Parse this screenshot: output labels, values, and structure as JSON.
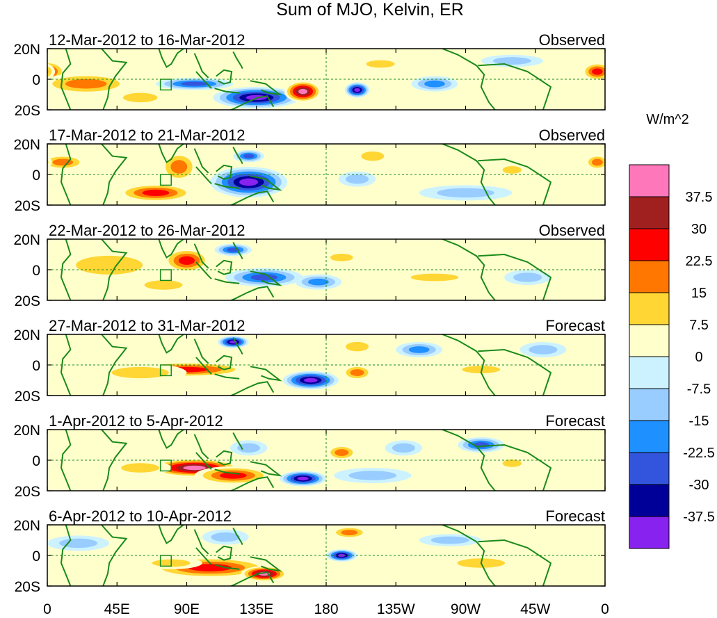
{
  "chart_data": {
    "type": "heatmap",
    "title": "Sum of MJO, Kelvin, ER",
    "panels": [
      {
        "date_range": "12-Mar-2012 to 16-Mar-2012",
        "label": "Observed",
        "anomalies": [
          {
            "lon": 0,
            "lat": 5,
            "rx": 12,
            "ry": 7,
            "v": 25
          },
          {
            "lon": 25,
            "lat": -3,
            "rx": 30,
            "ry": 7,
            "v": 20
          },
          {
            "lon": 60,
            "lat": -12,
            "rx": 18,
            "ry": 5,
            "v": 15
          },
          {
            "lon": 95,
            "lat": -3,
            "rx": 25,
            "ry": 4,
            "v": -25
          },
          {
            "lon": 135,
            "lat": -12,
            "rx": 28,
            "ry": 7,
            "v": -40
          },
          {
            "lon": 165,
            "lat": -8,
            "rx": 12,
            "ry": 7,
            "v": 40
          },
          {
            "lon": -160,
            "lat": -7,
            "rx": 8,
            "ry": 5,
            "v": -38
          },
          {
            "lon": -110,
            "lat": -3,
            "rx": 15,
            "ry": 5,
            "v": -20
          },
          {
            "lon": -145,
            "lat": 10,
            "rx": 15,
            "ry": 4,
            "v": 10
          },
          {
            "lon": 355,
            "lat": 5,
            "rx": 10,
            "ry": 6,
            "v": 25
          },
          {
            "lon": -60,
            "lat": 12,
            "rx": 20,
            "ry": 4,
            "v": -12
          }
        ]
      },
      {
        "date_range": "17-Mar-2012 to 21-Mar-2012",
        "label": "Observed",
        "anomalies": [
          {
            "lon": 10,
            "lat": 8,
            "rx": 15,
            "ry": 5,
            "v": 20
          },
          {
            "lon": 70,
            "lat": -12,
            "rx": 25,
            "ry": 6,
            "v": 30
          },
          {
            "lon": 85,
            "lat": 5,
            "rx": 12,
            "ry": 10,
            "v": 22
          },
          {
            "lon": 130,
            "lat": -5,
            "rx": 25,
            "ry": 10,
            "v": -38
          },
          {
            "lon": 130,
            "lat": 12,
            "rx": 10,
            "ry": 4,
            "v": -30
          },
          {
            "lon": -150,
            "lat": 12,
            "rx": 12,
            "ry": 5,
            "v": 15
          },
          {
            "lon": -160,
            "lat": -3,
            "rx": 12,
            "ry": 5,
            "v": -15
          },
          {
            "lon": -60,
            "lat": 3,
            "rx": 10,
            "ry": 4,
            "v": 15
          },
          {
            "lon": -90,
            "lat": -12,
            "rx": 30,
            "ry": 5,
            "v": -12
          },
          {
            "lon": 355,
            "lat": 8,
            "rx": 8,
            "ry": 5,
            "v": 22
          }
        ]
      },
      {
        "date_range": "22-Mar-2012 to 26-Mar-2012",
        "label": "Observed",
        "anomalies": [
          {
            "lon": 40,
            "lat": 3,
            "rx": 35,
            "ry": 10,
            "v": 12
          },
          {
            "lon": 90,
            "lat": 6,
            "rx": 15,
            "ry": 8,
            "v": 30
          },
          {
            "lon": 140,
            "lat": -5,
            "rx": 25,
            "ry": 6,
            "v": -30
          },
          {
            "lon": 120,
            "lat": 13,
            "rx": 12,
            "ry": 4,
            "v": -30
          },
          {
            "lon": 175,
            "lat": -8,
            "rx": 15,
            "ry": 5,
            "v": -20
          },
          {
            "lon": -170,
            "lat": 8,
            "rx": 12,
            "ry": 4,
            "v": 15
          },
          {
            "lon": -110,
            "lat": -5,
            "rx": 25,
            "ry": 4,
            "v": 10
          },
          {
            "lon": -50,
            "lat": -5,
            "rx": 15,
            "ry": 5,
            "v": -15
          },
          {
            "lon": 75,
            "lat": -10,
            "rx": 20,
            "ry": 5,
            "v": 15
          }
        ]
      },
      {
        "date_range": "27-Mar-2012 to 31-Mar-2012",
        "label": "Forecast",
        "anomalies": [
          {
            "lon": 90,
            "lat": -3,
            "rx": 40,
            "ry": 5,
            "v": 30
          },
          {
            "lon": 60,
            "lat": -5,
            "rx": 30,
            "ry": 6,
            "v": 15
          },
          {
            "lon": 120,
            "lat": 15,
            "rx": 10,
            "ry": 4,
            "v": -38
          },
          {
            "lon": 170,
            "lat": -10,
            "rx": 18,
            "ry": 6,
            "v": -40
          },
          {
            "lon": -160,
            "lat": 12,
            "rx": 12,
            "ry": 5,
            "v": 12
          },
          {
            "lon": -120,
            "lat": 10,
            "rx": 15,
            "ry": 5,
            "v": -20
          },
          {
            "lon": -160,
            "lat": -5,
            "rx": 10,
            "ry": 5,
            "v": 20
          },
          {
            "lon": -80,
            "lat": -3,
            "rx": 20,
            "ry": 4,
            "v": 10
          },
          {
            "lon": -40,
            "lat": 10,
            "rx": 15,
            "ry": 5,
            "v": -12
          }
        ]
      },
      {
        "date_range": "1-Apr-2012 to 5-Apr-2012",
        "label": "Forecast",
        "anomalies": [
          {
            "lon": 95,
            "lat": -5,
            "rx": 30,
            "ry": 6,
            "v": 40
          },
          {
            "lon": 120,
            "lat": -10,
            "rx": 25,
            "ry": 6,
            "v": 30
          },
          {
            "lon": 60,
            "lat": -5,
            "rx": 20,
            "ry": 5,
            "v": 15
          },
          {
            "lon": 165,
            "lat": -12,
            "rx": 15,
            "ry": 5,
            "v": -40
          },
          {
            "lon": 130,
            "lat": 8,
            "rx": 12,
            "ry": 5,
            "v": -15
          },
          {
            "lon": -170,
            "lat": 5,
            "rx": 10,
            "ry": 5,
            "v": 22
          },
          {
            "lon": -130,
            "lat": 8,
            "rx": 12,
            "ry": 5,
            "v": -15
          },
          {
            "lon": -80,
            "lat": 10,
            "rx": 15,
            "ry": 5,
            "v": -25
          },
          {
            "lon": -60,
            "lat": -2,
            "rx": 10,
            "ry": 4,
            "v": 15
          },
          {
            "lon": -150,
            "lat": -10,
            "rx": 25,
            "ry": 5,
            "v": -8
          }
        ]
      },
      {
        "date_range": "6-Apr-2012 to 10-Apr-2012",
        "label": "Forecast",
        "anomalies": [
          {
            "lon": 105,
            "lat": -8,
            "rx": 40,
            "ry": 7,
            "v": 25
          },
          {
            "lon": 140,
            "lat": -12,
            "rx": 15,
            "ry": 5,
            "v": 40
          },
          {
            "lon": 80,
            "lat": -5,
            "rx": 20,
            "ry": 4,
            "v": 15
          },
          {
            "lon": -170,
            "lat": 0,
            "rx": 10,
            "ry": 4,
            "v": -38
          },
          {
            "lon": -165,
            "lat": 15,
            "rx": 12,
            "ry": 4,
            "v": 20
          },
          {
            "lon": 115,
            "lat": 12,
            "rx": 15,
            "ry": 5,
            "v": -15
          },
          {
            "lon": -80,
            "lat": -5,
            "rx": 25,
            "ry": 5,
            "v": 10
          },
          {
            "lon": -100,
            "lat": 10,
            "rx": 20,
            "ry": 4,
            "v": -10
          },
          {
            "lon": 20,
            "lat": 8,
            "rx": 20,
            "ry": 5,
            "v": -15
          }
        ]
      }
    ],
    "y_ticks": [
      "20N",
      "0",
      "20S"
    ],
    "x_ticks": [
      "0",
      "45E",
      "90E",
      "135E",
      "180",
      "135W",
      "90W",
      "45W",
      "0"
    ],
    "colorbar": {
      "unit": "W/m^2",
      "levels": [
        "37.5",
        "30",
        "22.5",
        "15",
        "7.5",
        "0",
        "-7.5",
        "-15",
        "-22.5",
        "-30",
        "-37.5"
      ],
      "colors": [
        "#ff77bb",
        "#a02020",
        "#ff0000",
        "#ff7700",
        "#ffd633",
        "#ffffcc",
        "#ccf2ff",
        "#99ccff",
        "#1e90ff",
        "#3355dd",
        "#000099",
        "#8822ee"
      ]
    },
    "ylim": [
      -20,
      20
    ],
    "xlim": [
      0,
      360
    ],
    "grid": false
  }
}
